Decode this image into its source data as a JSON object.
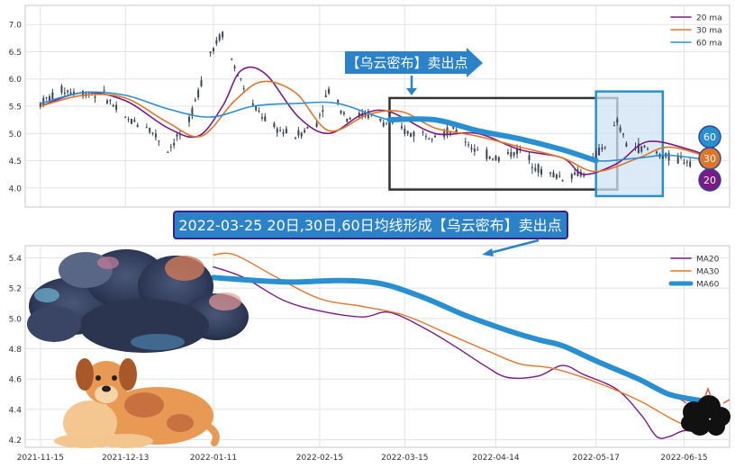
{
  "colors": {
    "ma20": "#7b1a86",
    "ma30": "#e07527",
    "ma60": "#2a8fd0",
    "candle": "#3a4654",
    "banner_bg": "#2b82c9",
    "banner_border": "#3b1e86",
    "grid": "#e3e3e3",
    "zone_fill": "#cfe3f3",
    "box_stroke": "#333333"
  },
  "icons": {
    "cloud": "dark-storm-cloud-icon",
    "dog": "sitting-dog-icon",
    "small_cloud": "black-thundercloud-icon"
  },
  "annotations": {
    "top_label": "【乌云密布】卖出点",
    "headline": "2022-03-25 20日,30日,60日均线形成【乌云密布】卖出点"
  },
  "badges": [
    "60",
    "30",
    "20"
  ],
  "chart_data": [
    {
      "type": "line",
      "panel": "top",
      "description_type": "candlestick with moving averages",
      "ylim": [
        3.65,
        7.35
      ],
      "yticks": [
        "4.0",
        "4.5",
        "5.0",
        "5.5",
        "6.0",
        "6.5",
        "7.0"
      ],
      "xlim": [
        "2021-11-10",
        "2022-06-30"
      ],
      "legend": [
        "20 ma",
        "30 ma",
        "60 ma"
      ],
      "legend_position": "top-right",
      "grid": true,
      "price_anchors": [
        [
          "2021-11-15",
          5.55
        ],
        [
          "2021-11-22",
          5.8
        ],
        [
          "2021-11-29",
          5.75
        ],
        [
          "2021-12-06",
          5.7
        ],
        [
          "2021-12-13",
          5.25
        ],
        [
          "2021-12-20",
          5.15
        ],
        [
          "2021-12-27",
          4.7
        ],
        [
          "2022-01-03",
          5.2
        ],
        [
          "2022-01-10",
          6.5
        ],
        [
          "2022-01-14",
          6.85
        ],
        [
          "2022-01-18",
          6.2
        ],
        [
          "2022-01-24",
          5.5
        ],
        [
          "2022-01-31",
          5.1
        ],
        [
          "2022-02-07",
          4.95
        ],
        [
          "2022-02-14",
          5.2
        ],
        [
          "2022-02-18",
          5.8
        ],
        [
          "2022-02-24",
          5.3
        ],
        [
          "2022-03-03",
          5.35
        ],
        [
          "2022-03-10",
          5.15
        ],
        [
          "2022-03-17",
          5.0
        ],
        [
          "2022-03-25",
          5.0
        ],
        [
          "2022-04-01",
          5.05
        ],
        [
          "2022-04-08",
          4.65
        ],
        [
          "2022-04-15",
          4.55
        ],
        [
          "2022-04-22",
          4.7
        ],
        [
          "2022-04-29",
          4.3
        ],
        [
          "2022-05-06",
          4.2
        ],
        [
          "2022-05-13",
          4.3
        ],
        [
          "2022-05-20",
          4.8
        ],
        [
          "2022-05-24",
          5.2
        ],
        [
          "2022-05-27",
          4.8
        ],
        [
          "2022-06-03",
          4.7
        ],
        [
          "2022-06-10",
          4.55
        ],
        [
          "2022-06-17",
          4.5
        ],
        [
          "2022-06-24",
          4.55
        ]
      ],
      "series": [
        {
          "name": "20 ma",
          "points": [
            [
              "2021-11-15",
              5.5
            ],
            [
              "2021-11-29",
              5.75
            ],
            [
              "2021-12-13",
              5.6
            ],
            [
              "2021-12-27",
              5.1
            ],
            [
              "2022-01-06",
              4.95
            ],
            [
              "2022-01-14",
              5.5
            ],
            [
              "2022-01-20",
              6.15
            ],
            [
              "2022-01-28",
              6.1
            ],
            [
              "2022-02-08",
              5.3
            ],
            [
              "2022-02-18",
              5.0
            ],
            [
              "2022-03-01",
              5.35
            ],
            [
              "2022-03-10",
              5.4
            ],
            [
              "2022-03-25",
              5.0
            ],
            [
              "2022-04-08",
              5.0
            ],
            [
              "2022-04-22",
              4.7
            ],
            [
              "2022-05-06",
              4.55
            ],
            [
              "2022-05-13",
              4.25
            ],
            [
              "2022-05-24",
              4.45
            ],
            [
              "2022-06-03",
              4.85
            ],
            [
              "2022-06-17",
              4.7
            ],
            [
              "2022-06-24",
              4.55
            ]
          ]
        },
        {
          "name": "30 ma",
          "points": [
            [
              "2021-11-15",
              5.5
            ],
            [
              "2021-11-29",
              5.7
            ],
            [
              "2021-12-13",
              5.65
            ],
            [
              "2021-12-27",
              5.2
            ],
            [
              "2022-01-07",
              4.95
            ],
            [
              "2022-01-18",
              5.6
            ],
            [
              "2022-01-27",
              5.95
            ],
            [
              "2022-02-07",
              5.75
            ],
            [
              "2022-02-18",
              5.05
            ],
            [
              "2022-03-03",
              5.35
            ],
            [
              "2022-03-14",
              5.4
            ],
            [
              "2022-03-25",
              5.1
            ],
            [
              "2022-04-08",
              4.95
            ],
            [
              "2022-04-22",
              4.75
            ],
            [
              "2022-05-06",
              4.55
            ],
            [
              "2022-05-17",
              4.3
            ],
            [
              "2022-05-31",
              4.55
            ],
            [
              "2022-06-10",
              4.75
            ],
            [
              "2022-06-24",
              4.55
            ]
          ]
        },
        {
          "name": "60 ma",
          "points": [
            [
              "2021-11-15",
              5.55
            ],
            [
              "2021-11-29",
              5.75
            ],
            [
              "2021-12-13",
              5.7
            ],
            [
              "2021-12-27",
              5.45
            ],
            [
              "2022-01-10",
              5.3
            ],
            [
              "2022-01-24",
              5.5
            ],
            [
              "2022-02-07",
              5.55
            ],
            [
              "2022-02-21",
              5.55
            ],
            [
              "2022-03-10",
              5.25
            ],
            [
              "2022-03-25",
              5.25
            ],
            [
              "2022-04-08",
              5.05
            ],
            [
              "2022-04-22",
              4.9
            ],
            [
              "2022-05-06",
              4.7
            ],
            [
              "2022-05-17",
              4.5
            ],
            [
              "2022-05-31",
              4.55
            ],
            [
              "2022-06-10",
              4.6
            ],
            [
              "2022-06-24",
              4.5
            ]
          ]
        }
      ],
      "boxes": [
        {
          "kind": "outline",
          "x0": "2022-03-10",
          "x1": "2022-05-24",
          "y0": 3.97,
          "y1": 5.65
        },
        {
          "kind": "shaded",
          "x0": "2022-05-17",
          "x1": "2022-06-08",
          "y0": 3.85,
          "y1": 5.77
        }
      ]
    },
    {
      "type": "line",
      "panel": "bottom",
      "ylim": [
        4.15,
        5.48
      ],
      "yticks": [
        "4.2",
        "4.4",
        "4.6",
        "4.8",
        "5.0",
        "5.2",
        "5.4"
      ],
      "xlim": [
        "2021-11-10",
        "2022-06-30"
      ],
      "xticks": [
        "2021-11-15",
        "2021-12-13",
        "2022-01-11",
        "2022-02-15",
        "2022-03-15",
        "2022-04-14",
        "2022-05-17",
        "2022-06-15"
      ],
      "legend": [
        "MA20",
        "MA30",
        "MA60"
      ],
      "legend_position": "top-right",
      "grid": true,
      "series": [
        {
          "name": "MA20",
          "points": [
            [
              "2022-01-11",
              5.34
            ],
            [
              "2022-01-21",
              5.27
            ],
            [
              "2022-02-03",
              5.12
            ],
            [
              "2022-02-15",
              5.05
            ],
            [
              "2022-03-01",
              5.01
            ],
            [
              "2022-03-10",
              5.04
            ],
            [
              "2022-03-22",
              4.93
            ],
            [
              "2022-04-01",
              4.81
            ],
            [
              "2022-04-11",
              4.68
            ],
            [
              "2022-04-18",
              4.61
            ],
            [
              "2022-04-28",
              4.62
            ],
            [
              "2022-05-06",
              4.69
            ],
            [
              "2022-05-13",
              4.63
            ],
            [
              "2022-05-24",
              4.53
            ],
            [
              "2022-06-01",
              4.36
            ],
            [
              "2022-06-06",
              4.22
            ],
            [
              "2022-06-10",
              4.22
            ],
            [
              "2022-06-15",
              4.26
            ],
            [
              "2022-06-20",
              4.25
            ],
            [
              "2022-06-24",
              4.3
            ]
          ]
        },
        {
          "name": "MA30",
          "points": [
            [
              "2022-01-11",
              5.42
            ],
            [
              "2022-01-18",
              5.42
            ],
            [
              "2022-01-31",
              5.28
            ],
            [
              "2022-02-15",
              5.13
            ],
            [
              "2022-03-01",
              5.08
            ],
            [
              "2022-03-15",
              5.02
            ],
            [
              "2022-03-29",
              4.9
            ],
            [
              "2022-04-12",
              4.78
            ],
            [
              "2022-04-22",
              4.7
            ],
            [
              "2022-05-03",
              4.67
            ],
            [
              "2022-05-17",
              4.58
            ],
            [
              "2022-05-31",
              4.46
            ],
            [
              "2022-06-15",
              4.3
            ],
            [
              "2022-06-24",
              4.31
            ]
          ]
        },
        {
          "name": "MA60",
          "points": [
            [
              "2022-01-11",
              5.27
            ],
            [
              "2022-01-25",
              5.25
            ],
            [
              "2022-02-07",
              5.24
            ],
            [
              "2022-02-21",
              5.25
            ],
            [
              "2022-03-07",
              5.23
            ],
            [
              "2022-03-21",
              5.14
            ],
            [
              "2022-04-04",
              5.02
            ],
            [
              "2022-04-18",
              4.92
            ],
            [
              "2022-04-28",
              4.86
            ],
            [
              "2022-05-06",
              4.82
            ],
            [
              "2022-05-17",
              4.72
            ],
            [
              "2022-05-31",
              4.6
            ],
            [
              "2022-06-10",
              4.5
            ],
            [
              "2022-06-20",
              4.46
            ]
          ]
        }
      ]
    }
  ]
}
